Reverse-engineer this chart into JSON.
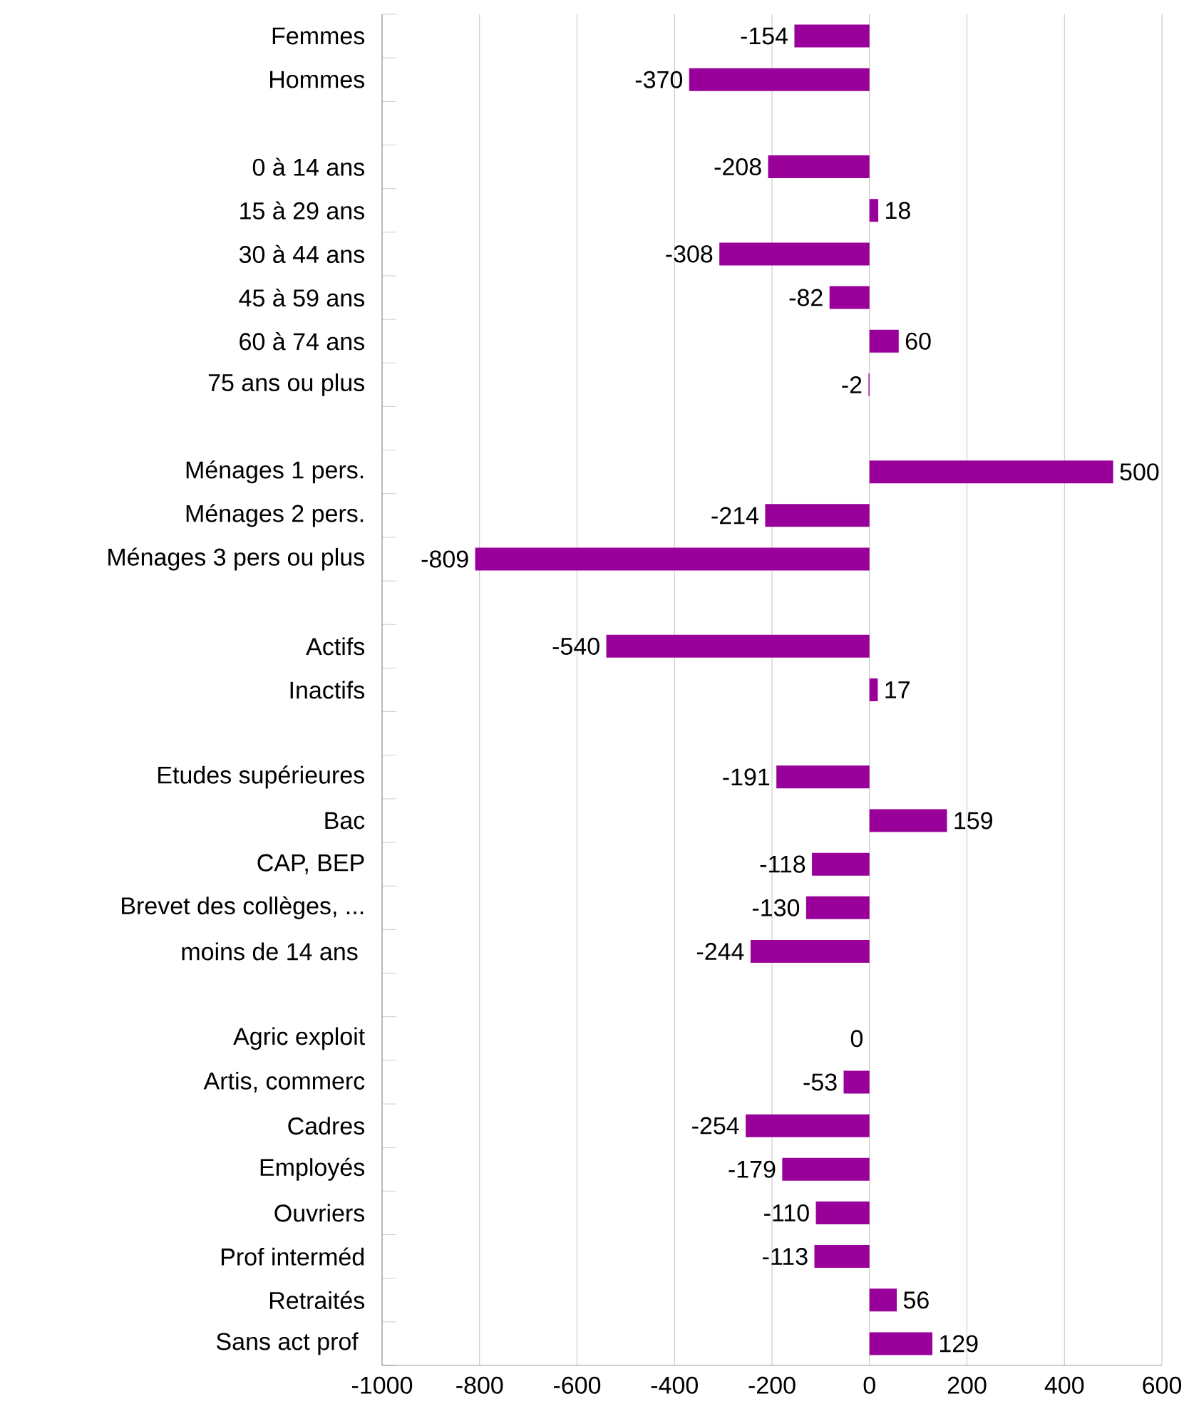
{
  "chart_data": {
    "type": "bar",
    "orientation": "horizontal",
    "color": "#990099",
    "data_labels": true,
    "grid": "x",
    "categories": [
      "Femmes",
      "Hommes",
      null,
      "0 à 14 ans",
      "15 à 29 ans",
      "30 à 44 ans",
      "45 à 59 ans",
      "60 à 74 ans",
      "75 ans ou plus",
      null,
      "Ménages 1 pers.",
      "Ménages 2 pers.",
      "Ménages 3 pers ou plus",
      null,
      "Actifs",
      "Inactifs",
      null,
      "Etudes supérieures",
      "Bac",
      "CAP, BEP",
      "Brevet des collèges, ...",
      "moins de 14 ans ",
      null,
      "Agric exploit",
      "Artis, commerc",
      "Cadres",
      "Employés",
      "Ouvriers",
      "Prof interméd",
      "Retraités",
      "Sans act prof "
    ],
    "values": [
      -154,
      -370,
      null,
      -208,
      18,
      -308,
      -82,
      60,
      -2,
      null,
      500,
      -214,
      -809,
      null,
      -540,
      17,
      null,
      -191,
      159,
      -118,
      -130,
      -244,
      null,
      0,
      -53,
      -254,
      -179,
      -110,
      -113,
      56,
      129
    ],
    "xlim": [
      -1000,
      600
    ],
    "xticks": [
      -1000,
      -800,
      -600,
      -400,
      -200,
      0,
      200,
      400,
      600
    ]
  }
}
